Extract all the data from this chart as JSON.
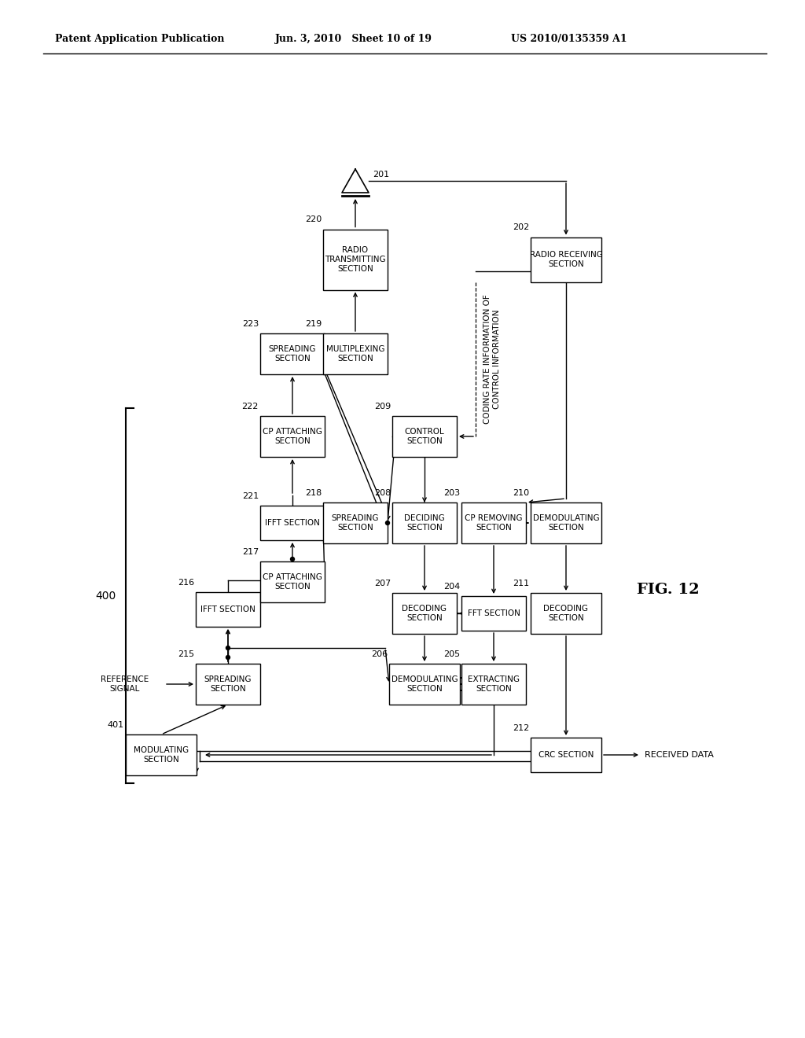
{
  "header_left": "Patent Application Publication",
  "header_mid": "Jun. 3, 2010   Sheet 10 of 19",
  "header_right": "US 2010/0135359 A1",
  "fig_label": "FIG. 12",
  "bg_color": "#ffffff",
  "blocks": {
    "401": "MODULATING\nSECTION",
    "215": "SPREADING\nSECTION",
    "216": "IFFT SECTION",
    "217": "CP ATTACHING\nSECTION",
    "221": "IFFT SECTION",
    "222": "CP ATTACHING\nSECTION",
    "218": "SPREADING\nSECTION",
    "223": "SPREADING\nSECTION",
    "219": "MULTIPLEXING\nSECTION",
    "220": "RADIO\nTRANSMITTING\nSECTION",
    "209": "CONTROL\nSECTION",
    "208": "DECIDING\nSECTION",
    "207": "DECODING\nSECTION",
    "206": "DEMODULATING\nSECTION",
    "205": "EXTRACTING\nSECTION",
    "204": "FFT SECTION",
    "203": "CP REMOVING\nSECTION",
    "202": "RADIO RECEIVING\nSECTION",
    "210": "DEMODULATING\nSECTION",
    "211": "DECODING\nSECTION",
    "212": "CRC SECTION"
  }
}
